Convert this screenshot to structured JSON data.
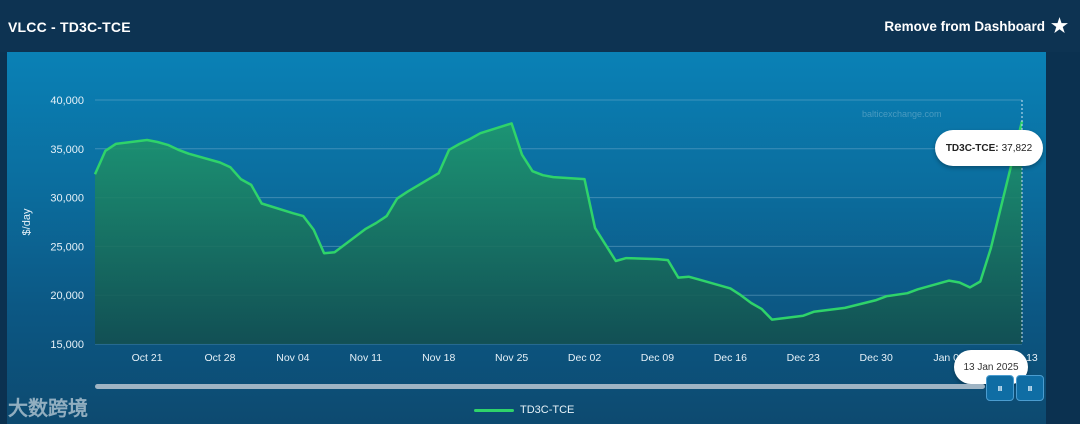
{
  "header": {
    "title": "VLCC - TD3C-TCE",
    "remove_label": "Remove from Dashboard"
  },
  "icons": {
    "star": "star-icon",
    "scroll_left": "scroll-left-icon",
    "scroll_right": "scroll-right-icon"
  },
  "colors": {
    "line": "#2fd36a",
    "fill_top": "#1f9a6b",
    "fill_bottom": "#124f50",
    "panel_top": "#0a81b6"
  },
  "watermark": {
    "site": "balticexchange.com",
    "logo_text": "大数跨境"
  },
  "tooltip": {
    "series": "TD3C-TCE:",
    "value": "37,822",
    "date": "13 Jan 2025"
  },
  "legend": {
    "label": "TD3C-TCE"
  },
  "chart_data": {
    "type": "area",
    "title": "VLCC - TD3C-TCE",
    "xlabel": "",
    "ylabel": "$/day",
    "ylim": [
      15000,
      40000
    ],
    "yticks": [
      "15,000",
      "20,000",
      "25,000",
      "30,000",
      "35,000",
      "40,000"
    ],
    "xticks": [
      "Oct 21",
      "Oct 28",
      "Nov 04",
      "Nov 11",
      "Nov 18",
      "Nov 25",
      "Dec 02",
      "Dec 09",
      "Dec 16",
      "Dec 23",
      "Dec 30",
      "Jan 06",
      "Jan 13"
    ],
    "grid": true,
    "legend_position": "bottom",
    "series": [
      {
        "name": "TD3C-TCE",
        "points": [
          [
            "2024-10-16",
            32400
          ],
          [
            "2024-10-17",
            34800
          ],
          [
            "2024-10-18",
            35500
          ],
          [
            "2024-10-21",
            35900
          ],
          [
            "2024-10-22",
            35700
          ],
          [
            "2024-10-23",
            35400
          ],
          [
            "2024-10-24",
            34900
          ],
          [
            "2024-10-25",
            34500
          ],
          [
            "2024-10-28",
            33600
          ],
          [
            "2024-10-29",
            33100
          ],
          [
            "2024-10-30",
            31900
          ],
          [
            "2024-10-31",
            31300
          ],
          [
            "2024-11-01",
            29400
          ],
          [
            "2024-11-04",
            28400
          ],
          [
            "2024-11-05",
            28100
          ],
          [
            "2024-11-06",
            26700
          ],
          [
            "2024-11-07",
            24300
          ],
          [
            "2024-11-08",
            24400
          ],
          [
            "2024-11-11",
            26800
          ],
          [
            "2024-11-12",
            27400
          ],
          [
            "2024-11-13",
            28100
          ],
          [
            "2024-11-14",
            29900
          ],
          [
            "2024-11-15",
            30600
          ],
          [
            "2024-11-18",
            32500
          ],
          [
            "2024-11-19",
            34900
          ],
          [
            "2024-11-20",
            35500
          ],
          [
            "2024-11-21",
            36000
          ],
          [
            "2024-11-22",
            36600
          ],
          [
            "2024-11-25",
            37600
          ],
          [
            "2024-11-26",
            34400
          ],
          [
            "2024-11-27",
            32700
          ],
          [
            "2024-11-28",
            32300
          ],
          [
            "2024-11-29",
            32100
          ],
          [
            "2024-12-02",
            31900
          ],
          [
            "2024-12-03",
            26900
          ],
          [
            "2024-12-04",
            25200
          ],
          [
            "2024-12-05",
            23500
          ],
          [
            "2024-12-06",
            23800
          ],
          [
            "2024-12-09",
            23700
          ],
          [
            "2024-12-10",
            23600
          ],
          [
            "2024-12-11",
            21800
          ],
          [
            "2024-12-12",
            21900
          ],
          [
            "2024-12-13",
            21600
          ],
          [
            "2024-12-16",
            20700
          ],
          [
            "2024-12-17",
            20000
          ],
          [
            "2024-12-18",
            19200
          ],
          [
            "2024-12-19",
            18600
          ],
          [
            "2024-12-20",
            17500
          ],
          [
            "2024-12-23",
            17900
          ],
          [
            "2024-12-24",
            18300
          ],
          [
            "2024-12-27",
            18700
          ],
          [
            "2024-12-30",
            19500
          ],
          [
            "2024-12-31",
            19900
          ],
          [
            "2025-01-02",
            20200
          ],
          [
            "2025-01-03",
            20600
          ],
          [
            "2025-01-06",
            21500
          ],
          [
            "2025-01-07",
            21300
          ],
          [
            "2025-01-08",
            20800
          ],
          [
            "2025-01-09",
            21400
          ],
          [
            "2025-01-10",
            24800
          ],
          [
            "2025-01-13",
            37822
          ]
        ]
      }
    ]
  }
}
